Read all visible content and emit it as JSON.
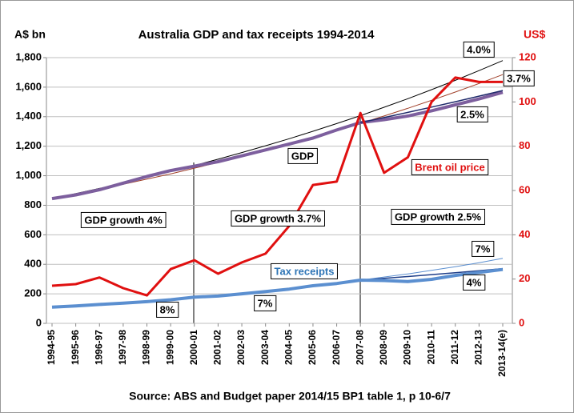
{
  "chart_data": {
    "type": "line",
    "title": "Australia GDP and tax receipts 1994-2014",
    "y_label": "A$ bn",
    "y2_label": "US$",
    "source": "Source: ABS and Budget paper 2014/15 BP1 table 1, p 10-6/7",
    "categories": [
      "1994-95",
      "1995-96",
      "1996-97",
      "1997-98",
      "1998-99",
      "1999-00",
      "2000-01",
      "2001-02",
      "2002-03",
      "2003-04",
      "2004-05",
      "2005-06",
      "2006-07",
      "2007-08",
      "2008-09",
      "2009-10",
      "2010-11",
      "2011-12",
      "2012-13",
      "2013-14(e)"
    ],
    "ylim": [
      0,
      1800
    ],
    "yticks": [
      0,
      200,
      400,
      600,
      800,
      {
        "value": 1000,
        "label": "1,000"
      },
      {
        "value": 1200,
        "label": "1,200"
      },
      {
        "value": 1400,
        "label": "1,400"
      },
      {
        "value": 1600,
        "label": "1,600"
      },
      {
        "value": 1800,
        "label": "1,800"
      }
    ],
    "y2lim": [
      0,
      120
    ],
    "y2ticks": [
      0,
      20,
      40,
      60,
      80,
      100,
      120
    ],
    "grid": true,
    "series": [
      {
        "name": "4.0%",
        "color": "#000000",
        "values": [
          845,
          879,
          914,
          950,
          989,
          1028,
          1069,
          1112,
          1157,
          1203,
          1251,
          1301,
          1353,
          1407,
          1464,
          1522,
          1583,
          1646,
          1712,
          1780
        ]
      },
      {
        "name": "3.7%",
        "color": "#a0402a",
        "values": [
          845,
          876,
          909,
          942,
          977,
          1013,
          1051,
          1090,
          1130,
          1172,
          1215,
          1260,
          1307,
          1355,
          1405,
          1457,
          1511,
          1567,
          1625,
          1685
        ]
      },
      {
        "name": "GDP",
        "color": "#7d5f9e",
        "values": [
          845,
          870,
          905,
          950,
          995,
          1035,
          1065,
          1095,
          1135,
          1175,
          1215,
          1255,
          1310,
          1360,
          1380,
          1405,
          1440,
          1480,
          1520,
          1565
        ]
      },
      {
        "name": "2.5%",
        "color": "#1f2a6b",
        "values": [
          null,
          null,
          null,
          null,
          null,
          null,
          null,
          null,
          null,
          null,
          null,
          null,
          null,
          1360,
          1394,
          1429,
          1465,
          1501,
          1539,
          1577
        ]
      },
      {
        "name": "7%",
        "color": "#5b8fd0",
        "values": [
          null,
          null,
          null,
          null,
          null,
          null,
          null,
          null,
          null,
          null,
          null,
          null,
          null,
          293,
          314,
          335,
          359,
          384,
          411,
          440
        ]
      },
      {
        "name": "4%",
        "color": "#1f3f8a",
        "values": [
          null,
          null,
          null,
          null,
          null,
          null,
          null,
          null,
          null,
          null,
          null,
          null,
          null,
          293,
          305,
          317,
          330,
          343,
          356,
          371
        ]
      },
      {
        "name": "Tax receipts",
        "color": "#5b8fd0",
        "values": [
          110,
          118,
          128,
          137,
          147,
          160,
          178,
          185,
          200,
          215,
          232,
          255,
          270,
          293,
          290,
          283,
          298,
          325,
          345,
          365
        ]
      },
      {
        "name": "Brent oil price",
        "color": "#e01010",
        "axis": "y2",
        "values": [
          17,
          17.7,
          20.7,
          15.9,
          12.6,
          24.5,
          28.5,
          22.4,
          27.5,
          31.5,
          44,
          62.5,
          64,
          95,
          68,
          75,
          100,
          111,
          109,
          109
        ]
      }
    ],
    "annotations": [
      "GDP growth 4%",
      "GDP growth 3.7%",
      "GDP growth 2.5%",
      "8%",
      "7%"
    ]
  }
}
